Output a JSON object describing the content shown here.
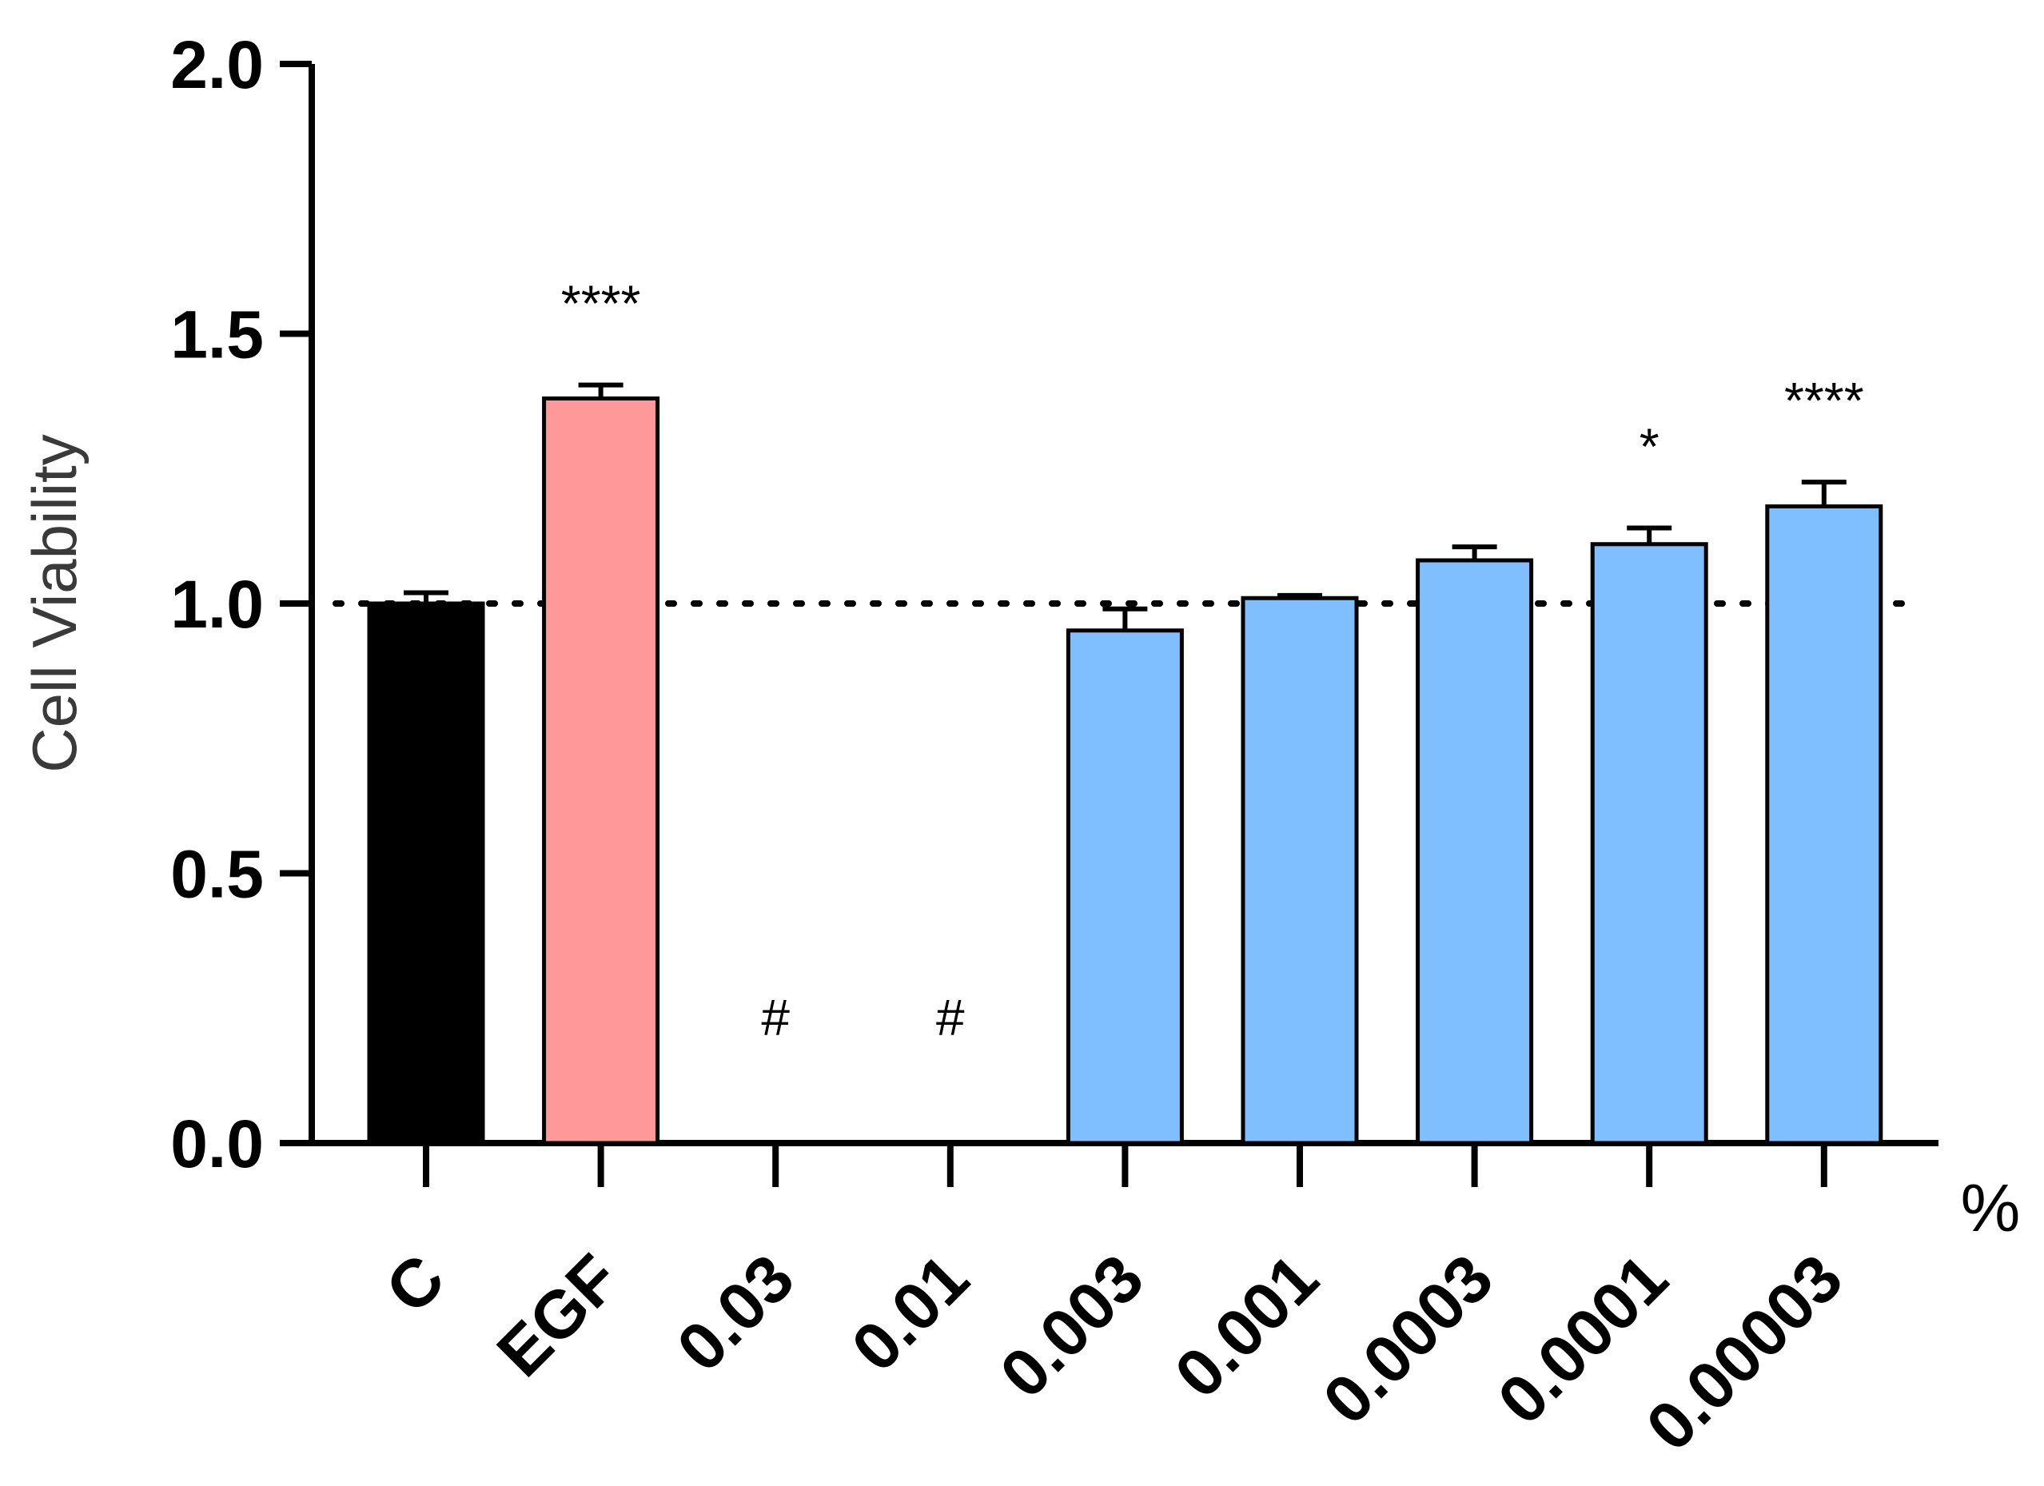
{
  "chart_data": {
    "type": "bar",
    "title": "",
    "xlabel": "",
    "ylabel": "Cell Viability",
    "x_unit": "%",
    "ylim": [
      0,
      2.0
    ],
    "yticks": [
      0.0,
      0.5,
      1.0,
      1.5,
      2.0
    ],
    "ytick_labels": [
      "0.0",
      "0.5",
      "1.0",
      "1.5",
      "2.0"
    ],
    "reference_line": 1.0,
    "categories": [
      "C",
      "EGF",
      "0.03",
      "0.01",
      "0.003",
      "0.001",
      "0.0003",
      "0.0001",
      "0.00003"
    ],
    "values": [
      1.0,
      1.38,
      0,
      0,
      0.95,
      1.01,
      1.08,
      1.11,
      1.18
    ],
    "errors": [
      0.02,
      0.025,
      0,
      0,
      0.04,
      0.005,
      0.025,
      0.03,
      0.045
    ],
    "colors": [
      "#000000",
      "#FF9999",
      "#7FBFFF",
      "#7FBFFF",
      "#7FBFFF",
      "#7FBFFF",
      "#7FBFFF",
      "#7FBFFF",
      "#7FBFFF"
    ],
    "significance": [
      "",
      "****",
      "#",
      "#",
      "",
      "",
      "",
      "*",
      "****"
    ]
  }
}
